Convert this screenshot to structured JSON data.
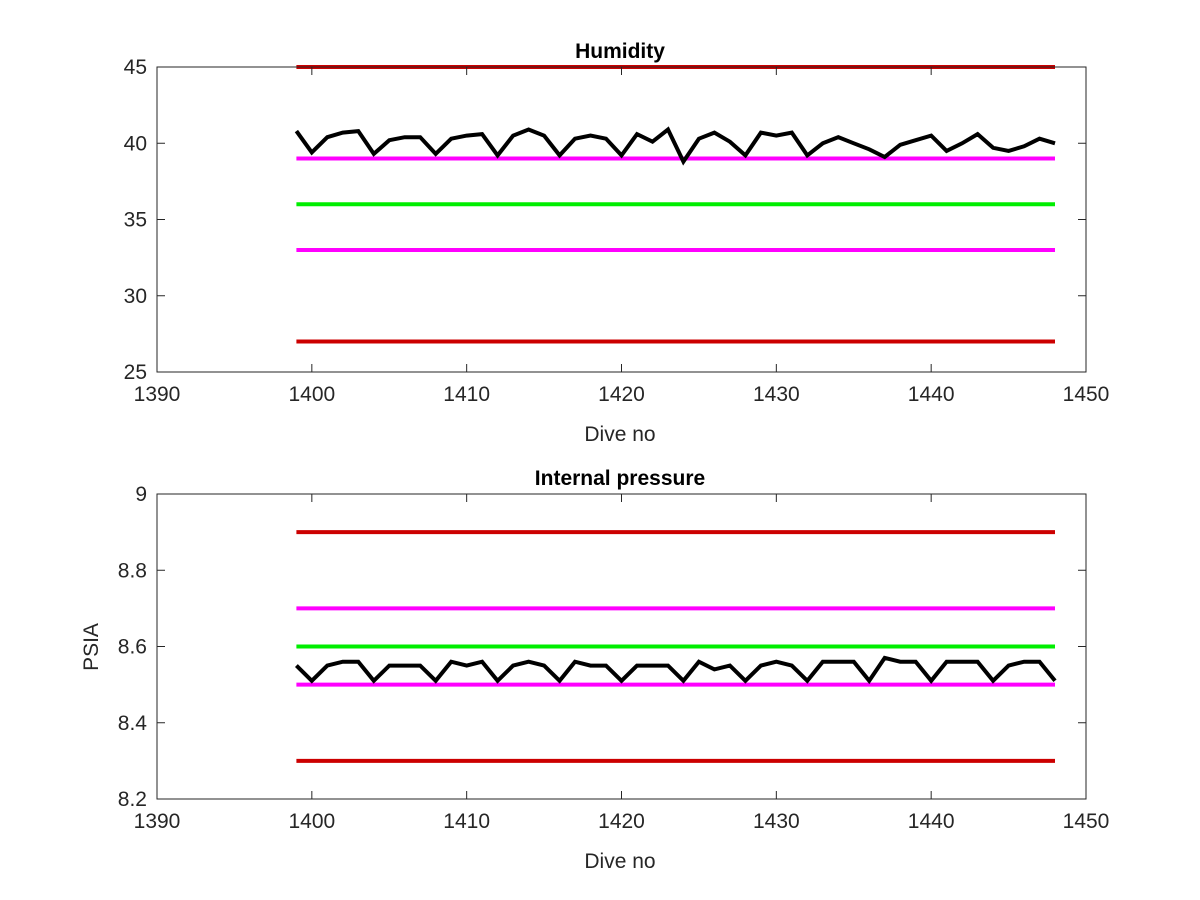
{
  "chart_data": [
    {
      "type": "line",
      "title": "Humidity",
      "xlabel": "Dive no",
      "ylabel": "",
      "xlim": [
        1390,
        1450
      ],
      "ylim": [
        25,
        45
      ],
      "xticks": [
        1390,
        1400,
        1410,
        1420,
        1430,
        1440,
        1450
      ],
      "yticks": [
        25,
        30,
        35,
        40,
        45
      ],
      "grid": false,
      "series": [
        {
          "color": "#000000",
          "x": [
            1399,
            1400,
            1401,
            1402,
            1403,
            1404,
            1405,
            1406,
            1407,
            1408,
            1409,
            1410,
            1411,
            1412,
            1413,
            1414,
            1415,
            1416,
            1417,
            1418,
            1419,
            1420,
            1421,
            1422,
            1423,
            1424,
            1425,
            1426,
            1427,
            1428,
            1429,
            1430,
            1431,
            1432,
            1433,
            1434,
            1435,
            1436,
            1437,
            1438,
            1439,
            1440,
            1441,
            1442,
            1443,
            1444,
            1445,
            1446,
            1447,
            1448
          ],
          "y": [
            40.8,
            39.4,
            40.4,
            40.7,
            40.8,
            39.3,
            40.2,
            40.4,
            40.4,
            39.3,
            40.3,
            40.5,
            40.6,
            39.2,
            40.5,
            40.9,
            40.5,
            39.2,
            40.3,
            40.5,
            40.3,
            39.2,
            40.6,
            40.1,
            40.9,
            38.8,
            40.3,
            40.7,
            40.1,
            39.2,
            40.7,
            40.5,
            40.7,
            39.2,
            40.0,
            40.4,
            40.0,
            39.6,
            39.1,
            39.9,
            40.2,
            40.5,
            39.5,
            40.0,
            40.6,
            39.7,
            39.5,
            39.8,
            40.3,
            40.0
          ]
        },
        {
          "color": "#cc0000",
          "x": [
            1399,
            1448
          ],
          "y": [
            45,
            45
          ]
        },
        {
          "color": "#ff00ff",
          "x": [
            1399,
            1448
          ],
          "y": [
            39,
            39
          ]
        },
        {
          "color": "#00ee00",
          "x": [
            1399,
            1448
          ],
          "y": [
            36,
            36
          ]
        },
        {
          "color": "#ff00ff",
          "x": [
            1399,
            1448
          ],
          "y": [
            33,
            33
          ]
        },
        {
          "color": "#cc0000",
          "x": [
            1399,
            1448
          ],
          "y": [
            27,
            27
          ]
        }
      ]
    },
    {
      "type": "line",
      "title": "Internal pressure",
      "xlabel": "Dive no",
      "ylabel": "PSIA",
      "xlim": [
        1390,
        1450
      ],
      "ylim": [
        8.2,
        9
      ],
      "xticks": [
        1390,
        1400,
        1410,
        1420,
        1430,
        1440,
        1450
      ],
      "yticks": [
        8.2,
        8.4,
        8.6,
        8.8,
        9
      ],
      "grid": false,
      "series": [
        {
          "color": "#000000",
          "x": [
            1399,
            1400,
            1401,
            1402,
            1403,
            1404,
            1405,
            1406,
            1407,
            1408,
            1409,
            1410,
            1411,
            1412,
            1413,
            1414,
            1415,
            1416,
            1417,
            1418,
            1419,
            1420,
            1421,
            1422,
            1423,
            1424,
            1425,
            1426,
            1427,
            1428,
            1429,
            1430,
            1431,
            1432,
            1433,
            1434,
            1435,
            1436,
            1437,
            1438,
            1439,
            1440,
            1441,
            1442,
            1443,
            1444,
            1445,
            1446,
            1447,
            1448
          ],
          "y": [
            8.55,
            8.51,
            8.55,
            8.56,
            8.56,
            8.51,
            8.55,
            8.55,
            8.55,
            8.51,
            8.56,
            8.55,
            8.56,
            8.51,
            8.55,
            8.56,
            8.55,
            8.51,
            8.56,
            8.55,
            8.55,
            8.51,
            8.55,
            8.55,
            8.55,
            8.51,
            8.56,
            8.54,
            8.55,
            8.51,
            8.55,
            8.56,
            8.55,
            8.51,
            8.56,
            8.56,
            8.56,
            8.51,
            8.57,
            8.56,
            8.56,
            8.51,
            8.56,
            8.56,
            8.56,
            8.51,
            8.55,
            8.56,
            8.56,
            8.51
          ]
        },
        {
          "color": "#cc0000",
          "x": [
            1399,
            1448
          ],
          "y": [
            8.9,
            8.9
          ]
        },
        {
          "color": "#ff00ff",
          "x": [
            1399,
            1448
          ],
          "y": [
            8.7,
            8.7
          ]
        },
        {
          "color": "#00ee00",
          "x": [
            1399,
            1448
          ],
          "y": [
            8.6,
            8.6
          ]
        },
        {
          "color": "#ff00ff",
          "x": [
            1399,
            1448
          ],
          "y": [
            8.5,
            8.5
          ]
        },
        {
          "color": "#cc0000",
          "x": [
            1399,
            1448
          ],
          "y": [
            8.3,
            8.3
          ]
        }
      ]
    }
  ]
}
